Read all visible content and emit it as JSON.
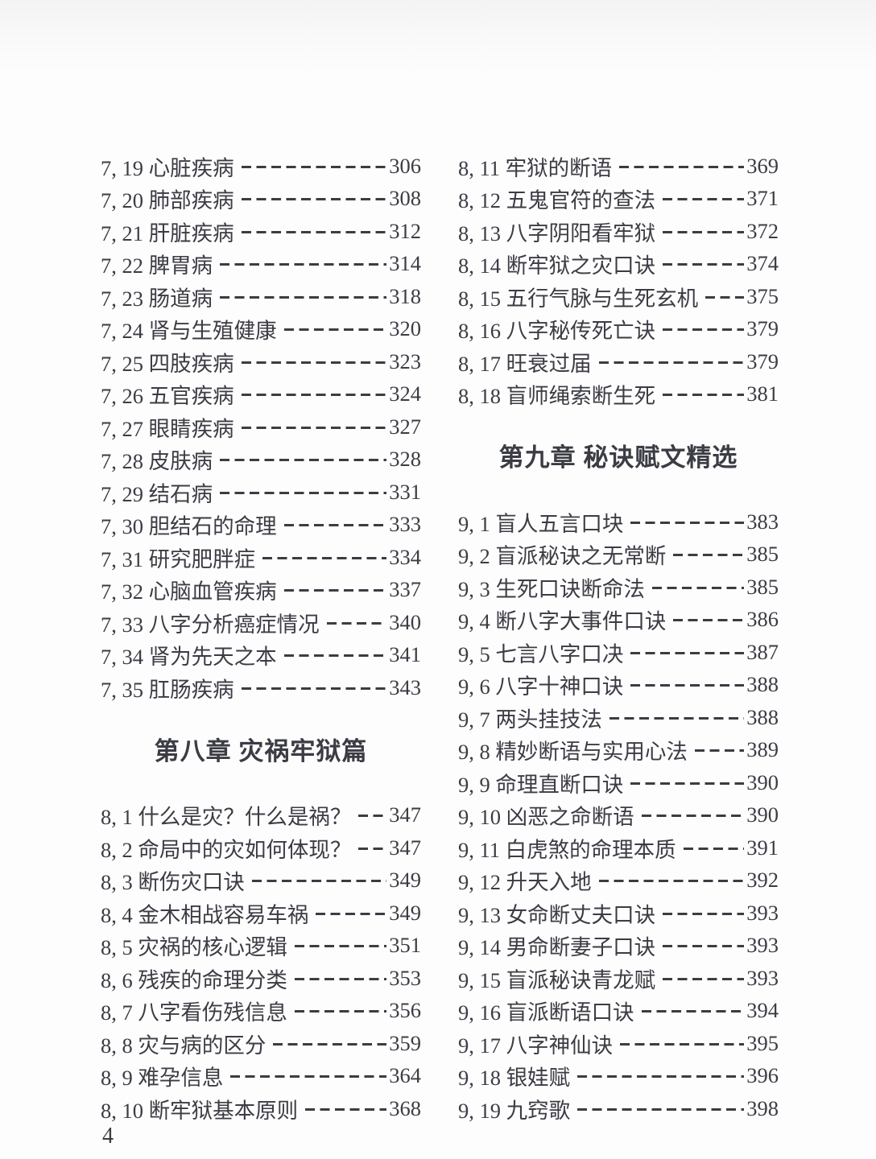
{
  "style": {
    "ink_color": "#3b3c44",
    "paper_color": "#fdfdfd"
  },
  "toc": {
    "page_number": "4",
    "chapter8_heading": "第八章 灾祸牢狱篇",
    "chapter9_heading": "第九章 秘诀赋文精选",
    "left_top": [
      {
        "label": "7, 19 心脏疾病",
        "page": "306"
      },
      {
        "label": "7, 20 肺部疾病",
        "page": "308"
      },
      {
        "label": "7, 21 肝脏疾病",
        "page": "312"
      },
      {
        "label": "7, 22 脾胃病",
        "page": "314"
      },
      {
        "label": "7, 23 肠道病",
        "page": "318"
      },
      {
        "label": "7, 24 肾与生殖健康",
        "page": "320"
      },
      {
        "label": "7, 25 四肢疾病",
        "page": "323"
      },
      {
        "label": "7, 26 五官疾病",
        "page": "324"
      },
      {
        "label": "7, 27 眼睛疾病",
        "page": "327"
      },
      {
        "label": "7, 28 皮肤病",
        "page": "328"
      },
      {
        "label": "7, 29 结石病",
        "page": "331"
      },
      {
        "label": "7, 30 胆结石的命理",
        "page": "333"
      },
      {
        "label": "7, 31 研究肥胖症",
        "page": "334"
      },
      {
        "label": "7, 32 心脑血管疾病",
        "page": "337"
      },
      {
        "label": "7, 33 八字分析癌症情况",
        "page": "340"
      },
      {
        "label": "7, 34 肾为先天之本",
        "page": "341"
      },
      {
        "label": "7, 35 肛肠疾病",
        "page": "343"
      }
    ],
    "left_bottom": [
      {
        "label": "8, 1 什么是灾？什么是祸？",
        "page": "347"
      },
      {
        "label": "8, 2 命局中的灾如何体现？",
        "page": "347"
      },
      {
        "label": "8, 3 断伤灾口诀",
        "page": "349"
      },
      {
        "label": "8, 4 金木相战容易车祸",
        "page": "349"
      },
      {
        "label": "8, 5 灾祸的核心逻辑",
        "page": "351"
      },
      {
        "label": "8, 6 残疾的命理分类",
        "page": "353"
      },
      {
        "label": "8, 7 八字看伤残信息",
        "page": "356"
      },
      {
        "label": "8, 8 灾与病的区分",
        "page": "359"
      },
      {
        "label": "8, 9 难孕信息",
        "page": "364"
      },
      {
        "label": "8, 10 断牢狱基本原则",
        "page": "368"
      }
    ],
    "right_top": [
      {
        "label": "8, 11 牢狱的断语",
        "page": "369"
      },
      {
        "label": "8, 12 五鬼官符的查法",
        "page": "371"
      },
      {
        "label": "8, 13 八字阴阳看牢狱",
        "page": "372"
      },
      {
        "label": "8, 14 断牢狱之灾口诀",
        "page": "374"
      },
      {
        "label": "8, 15 五行气脉与生死玄机",
        "page": "375"
      },
      {
        "label": "8, 16 八字秘传死亡诀",
        "page": "379"
      },
      {
        "label": "8, 17 旺衰过届",
        "page": "379"
      },
      {
        "label": "8, 18 盲师绳索断生死",
        "page": "381"
      }
    ],
    "right_bottom": [
      {
        "label": "9, 1 盲人五言口块",
        "page": "383"
      },
      {
        "label": "9, 2 盲派秘诀之无常断",
        "page": "385"
      },
      {
        "label": "9, 3 生死口诀断命法",
        "page": "385"
      },
      {
        "label": "9, 4 断八字大事件口诀",
        "page": "386"
      },
      {
        "label": "9, 5 七言八字口决",
        "page": "387"
      },
      {
        "label": "9, 6 八字十神口诀",
        "page": "388"
      },
      {
        "label": "9, 7 两头挂技法",
        "page": "388"
      },
      {
        "label": "9, 8 精妙断语与实用心法",
        "page": "389"
      },
      {
        "label": "9, 9 命理直断口诀",
        "page": "390"
      },
      {
        "label": "9, 10 凶恶之命断语",
        "page": "390"
      },
      {
        "label": "9, 11 白虎煞的命理本质",
        "page": "391"
      },
      {
        "label": "9, 12 升天入地",
        "page": "392"
      },
      {
        "label": "9, 13 女命断丈夫口诀",
        "page": "393"
      },
      {
        "label": "9, 14 男命断妻子口诀",
        "page": "393"
      },
      {
        "label": "9, 15 盲派秘诀青龙赋",
        "page": "393"
      },
      {
        "label": "9, 16 盲派断语口诀",
        "page": "394"
      },
      {
        "label": "9, 17 八字神仙诀",
        "page": "395"
      },
      {
        "label": "9, 18 银娃赋",
        "page": "396"
      },
      {
        "label": "9, 19 九窍歌",
        "page": "398"
      }
    ]
  }
}
